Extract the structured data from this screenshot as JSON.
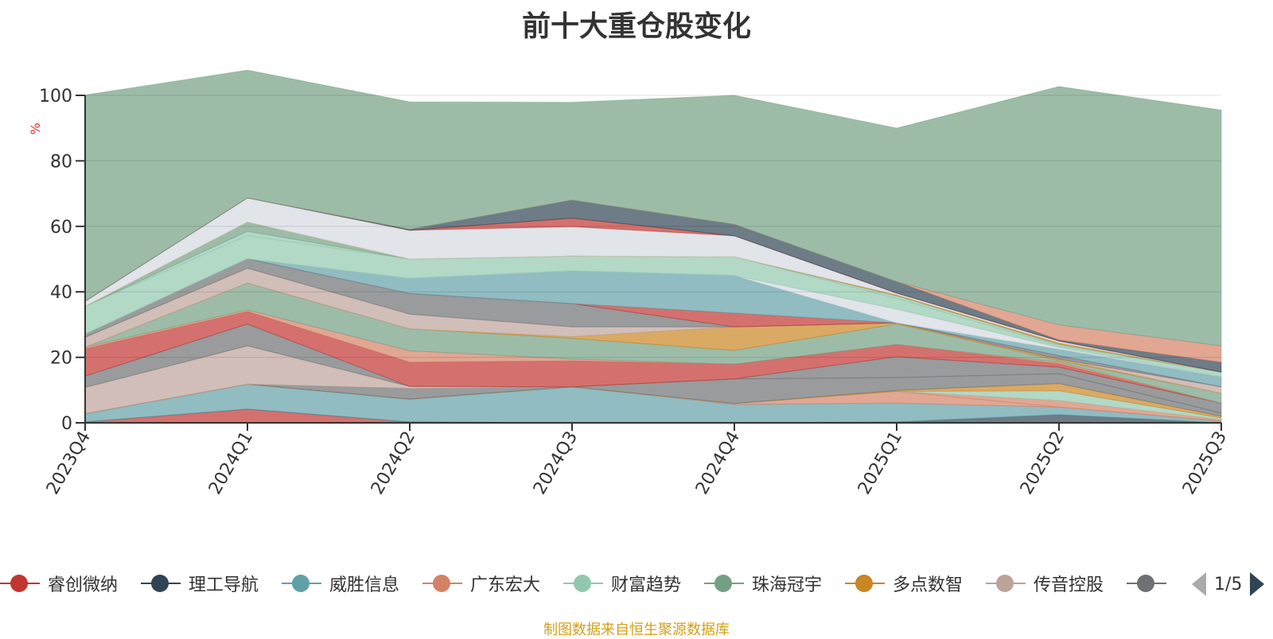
{
  "chart_data": {
    "type": "area",
    "title": "前十大重仓股变化",
    "ylabel": "%",
    "ylim": [
      0,
      100
    ],
    "yticks": [
      0,
      20,
      40,
      60,
      80,
      100
    ],
    "stacked": true,
    "grid": true,
    "categories": [
      "2023Q4",
      "2024Q1",
      "2024Q2",
      "2024Q3",
      "2024Q4",
      "2025Q1",
      "2025Q2",
      "2025Q3"
    ],
    "layers": [
      {
        "color": "#c23531",
        "values": [
          0.3,
          4.2,
          0.3,
          0,
          0,
          0,
          0,
          0
        ]
      },
      {
        "color": "#2f4554",
        "values": [
          0,
          0,
          0,
          0,
          0,
          0.3,
          2.5,
          0
        ]
      },
      {
        "color": "#61a0a8",
        "values": [
          2.5,
          7.6,
          6.9,
          11,
          5.6,
          5.7,
          2.3,
          0.5
        ]
      },
      {
        "color": "#d48265",
        "values": [
          0,
          0,
          0,
          0,
          0.3,
          3.6,
          0,
          0
        ]
      },
      {
        "color": "#d48265",
        "values": [
          0,
          0,
          0,
          0,
          0,
          0,
          2,
          0.5
        ]
      },
      {
        "color": "#91c7ae",
        "values": [
          0,
          0,
          0,
          0,
          0,
          0,
          3,
          0.5
        ]
      },
      {
        "color": "#ca8622",
        "values": [
          0,
          0,
          0,
          0,
          0,
          0.3,
          2.2,
          0.5
        ]
      },
      {
        "color": "#6e7074",
        "values": [
          0,
          0,
          3.3,
          0,
          7.5,
          3.9,
          3,
          1
        ]
      },
      {
        "color": "#bda29a",
        "values": [
          8,
          11.7,
          0.6,
          0,
          0,
          0,
          0,
          0
        ]
      },
      {
        "color": "#6e7074",
        "values": [
          3.5,
          6.7,
          0,
          0,
          0,
          6.4,
          2,
          3
        ]
      },
      {
        "color": "#c23531",
        "values": [
          8.3,
          3.8,
          7.4,
          7.9,
          4.5,
          3.7,
          1,
          0
        ]
      },
      {
        "color": "#d48265",
        "values": [
          0.5,
          0.5,
          3.5,
          0.6,
          0,
          0,
          0.5,
          0
        ]
      },
      {
        "color": "#749f83",
        "values": [
          0,
          8.2,
          6.7,
          6.3,
          4.2,
          6.3,
          0.5,
          3
        ]
      },
      {
        "color": "#ca8622",
        "values": [
          0,
          0,
          0,
          0.5,
          7.2,
          0.3,
          0.5,
          0
        ]
      },
      {
        "color": "#bda29a",
        "values": [
          3,
          4.5,
          4.5,
          3,
          0,
          0,
          0,
          2
        ]
      },
      {
        "color": "#6e7074",
        "values": [
          1,
          2.9,
          6.3,
          7.1,
          0,
          0,
          1,
          0
        ]
      },
      {
        "color": "#c23531",
        "values": [
          0,
          0,
          0,
          0,
          4.2,
          0,
          0,
          0
        ]
      },
      {
        "color": "#61a0a8",
        "values": [
          0,
          0,
          4.6,
          10,
          11.5,
          0,
          2,
          3
        ]
      },
      {
        "color": "#d4d8e0",
        "values": [
          0,
          0,
          0,
          0,
          0,
          4.2,
          0.5,
          0
        ]
      },
      {
        "color": "#91c7ae",
        "values": [
          8.5,
          7.1,
          5.9,
          4.5,
          5.7,
          3.3,
          0.5,
          1.5
        ]
      },
      {
        "color": "#91c7ae",
        "values": [
          0,
          1.3,
          0,
          0,
          0,
          0.8,
          0.5,
          0
        ]
      },
      {
        "color": "#749f83",
        "values": [
          0,
          2.8,
          0,
          0,
          0,
          0,
          0,
          0
        ]
      },
      {
        "color": "#ca8622",
        "values": [
          0,
          0,
          0,
          0,
          0,
          0.3,
          0.5,
          0
        ]
      },
      {
        "color": "#d4d8e0",
        "values": [
          1.5,
          7.4,
          8.8,
          9,
          6.4,
          0.5,
          0.5,
          0
        ]
      },
      {
        "color": "#c23531",
        "values": [
          0,
          0,
          0,
          2.6,
          0,
          0,
          0,
          0
        ]
      },
      {
        "color": "#2f4554",
        "values": [
          0,
          0,
          0.3,
          5.5,
          3.5,
          3.5,
          0.3,
          3
        ]
      },
      {
        "color": "#d48265",
        "values": [
          0,
          0,
          0,
          0,
          0,
          0,
          4.6,
          5
        ]
      },
      {
        "color": "#749f83",
        "values": [
          63,
          39,
          38.9,
          29.9,
          39.4,
          46.9,
          72.8,
          72
        ]
      }
    ],
    "legend_position": "bottom",
    "legend": [
      {
        "name": "睿创微纳",
        "color": "#c23531"
      },
      {
        "name": "理工导航",
        "color": "#2f4554"
      },
      {
        "name": "威胜信息",
        "color": "#61a0a8"
      },
      {
        "name": "广东宏大",
        "color": "#d48265"
      },
      {
        "name": "财富趋势",
        "color": "#91c7ae"
      },
      {
        "name": "珠海冠宇",
        "color": "#749f83"
      },
      {
        "name": "多点数智",
        "color": "#ca8622"
      },
      {
        "name": "传音控股",
        "color": "#bda29a"
      },
      {
        "name": "",
        "color": "#6e7074"
      }
    ]
  },
  "legend_pager": {
    "text": "1/5"
  },
  "footer_note": "制图数据来自恒生聚源数据库"
}
